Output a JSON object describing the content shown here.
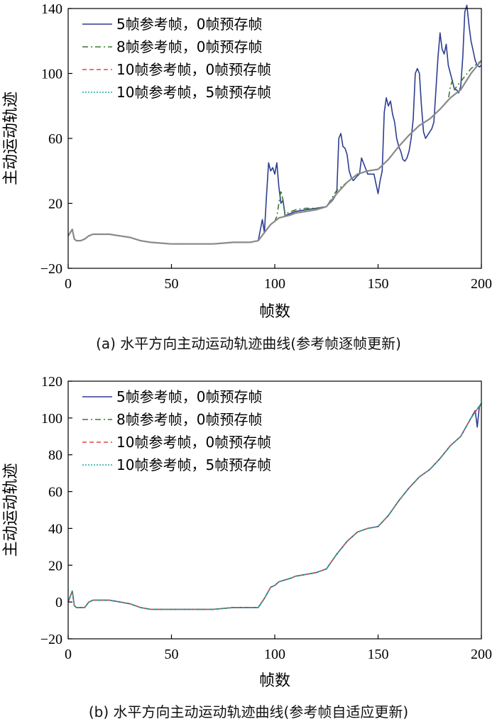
{
  "chart_data": [
    {
      "type": "line",
      "caption": "(a) 水平方向主动运动轨迹曲线(参考帧逐帧更新)",
      "xlabel": "帧数",
      "ylabel": "主动运动轨迹",
      "xlim": [
        0,
        200
      ],
      "ylim": [
        -20,
        140
      ],
      "xticks": [
        0,
        50,
        100,
        150,
        200
      ],
      "yticks": [
        -20,
        20,
        60,
        100,
        140
      ],
      "grid": false,
      "legend_position": "top-left",
      "series": [
        {
          "name": "5帧参考帧，0帧预存帧",
          "color": "#2e3d8f",
          "dash": "solid",
          "x": [
            0,
            2,
            3,
            4,
            6,
            8,
            10,
            12,
            15,
            20,
            25,
            30,
            35,
            40,
            50,
            60,
            70,
            80,
            88,
            92,
            94,
            95,
            96,
            97,
            98,
            99,
            100,
            101,
            102,
            103,
            104,
            105,
            106,
            108,
            110,
            115,
            120,
            125,
            128,
            130,
            131,
            132,
            133,
            134,
            135,
            136,
            137,
            138,
            140,
            141,
            142,
            145,
            148,
            150,
            151,
            152,
            153,
            154,
            155,
            156,
            157,
            158,
            159,
            160,
            161,
            162,
            163,
            164,
            165,
            166,
            167,
            168,
            169,
            170,
            171,
            172,
            173,
            174,
            175,
            176,
            177,
            178,
            179,
            180,
            181,
            182,
            183,
            184,
            185,
            186,
            187,
            188,
            189,
            190,
            191,
            192,
            193,
            194,
            195,
            196,
            197,
            198,
            199,
            200
          ],
          "y": [
            0,
            4,
            -2,
            -3,
            -3,
            -2,
            0,
            1,
            1,
            1,
            0,
            -1,
            -3,
            -4,
            -5,
            -5,
            -5,
            -4,
            -4,
            -3,
            10,
            2,
            25,
            45,
            40,
            42,
            38,
            45,
            30,
            20,
            22,
            12,
            13,
            14,
            15,
            16,
            17,
            18,
            22,
            26,
            60,
            63,
            55,
            54,
            50,
            40,
            36,
            34,
            37,
            38,
            48,
            38,
            38,
            26,
            34,
            40,
            76,
            85,
            80,
            83,
            75,
            70,
            60,
            55,
            52,
            47,
            46,
            48,
            52,
            60,
            72,
            100,
            103,
            100,
            80,
            64,
            60,
            62,
            64,
            66,
            70,
            90,
            110,
            125,
            115,
            112,
            118,
            105,
            100,
            95,
            90,
            90,
            88,
            92,
            110,
            138,
            142,
            130,
            120,
            114,
            108,
            105,
            104,
            105
          ]
        },
        {
          "name": "8帧参考帧，0帧预存帧",
          "color": "#3a7a34",
          "dash": "8 4 2 4",
          "x": [
            0,
            2,
            3,
            4,
            6,
            8,
            10,
            12,
            15,
            20,
            25,
            30,
            35,
            40,
            50,
            60,
            70,
            80,
            88,
            92,
            95,
            98,
            100,
            101,
            102,
            103,
            104,
            105,
            106,
            108,
            110,
            115,
            120,
            125,
            130,
            135,
            140,
            145,
            150,
            155,
            160,
            165,
            170,
            175,
            180,
            183,
            184,
            185,
            186,
            187,
            188,
            190,
            195,
            200
          ],
          "y": [
            0,
            4,
            -2,
            -3,
            -3,
            -2,
            0,
            1,
            1,
            1,
            0,
            -1,
            -3,
            -4,
            -5,
            -5,
            -5,
            -4,
            -4,
            -3,
            2,
            7,
            9,
            12,
            20,
            28,
            22,
            13,
            14,
            15,
            16,
            17,
            17,
            18,
            28,
            33,
            38,
            40,
            41,
            47,
            55,
            62,
            68,
            72,
            78,
            82,
            84,
            92,
            96,
            90,
            92,
            95,
            103,
            108
          ]
        },
        {
          "name": "10帧参考帧，0帧预存帧",
          "color": "#e0474c",
          "dash": "6 4",
          "x": [
            0,
            2,
            3,
            4,
            6,
            8,
            10,
            12,
            15,
            20,
            25,
            30,
            35,
            40,
            50,
            60,
            70,
            80,
            88,
            92,
            95,
            98,
            100,
            102,
            105,
            108,
            110,
            115,
            120,
            125,
            130,
            135,
            140,
            145,
            150,
            155,
            160,
            165,
            170,
            175,
            180,
            185,
            190,
            195,
            200
          ],
          "y": [
            0,
            4,
            -2,
            -3,
            -3,
            -2,
            0,
            1,
            1,
            1,
            0,
            -1,
            -3,
            -4,
            -5,
            -5,
            -5,
            -4,
            -4,
            -3,
            2,
            7,
            9,
            11,
            12,
            13,
            14,
            15,
            16,
            18,
            26,
            33,
            38,
            40,
            41,
            47,
            55,
            62,
            68,
            72,
            78,
            85,
            90,
            100,
            108
          ]
        },
        {
          "name": "10帧参考帧，5帧预存帧",
          "color": "#1aa6a6",
          "dash": "2 2",
          "x": [
            0,
            2,
            3,
            4,
            6,
            8,
            10,
            12,
            15,
            20,
            25,
            30,
            35,
            40,
            50,
            60,
            70,
            80,
            88,
            92,
            95,
            98,
            100,
            102,
            105,
            108,
            110,
            115,
            120,
            125,
            130,
            135,
            140,
            145,
            150,
            155,
            160,
            165,
            170,
            175,
            180,
            185,
            190,
            195,
            200
          ],
          "y": [
            0,
            4,
            -2,
            -3,
            -3,
            -2,
            0,
            1,
            1,
            1,
            0,
            -1,
            -3,
            -4,
            -5,
            -5,
            -5,
            -4,
            -4,
            -3,
            2,
            7,
            9,
            11,
            12,
            13,
            14,
            15,
            16,
            18,
            26,
            33,
            38,
            40,
            41,
            47,
            55,
            62,
            68,
            72,
            78,
            85,
            90,
            100,
            108
          ]
        },
        {
          "name": "",
          "color": "#8a8a8a",
          "dash": "solid",
          "x": [
            0,
            2,
            3,
            4,
            6,
            8,
            10,
            12,
            15,
            20,
            25,
            30,
            35,
            40,
            50,
            60,
            70,
            80,
            88,
            92,
            95,
            98,
            100,
            102,
            105,
            108,
            110,
            115,
            120,
            125,
            130,
            135,
            140,
            145,
            150,
            155,
            160,
            165,
            170,
            175,
            180,
            185,
            190,
            195,
            200
          ],
          "y": [
            0,
            4,
            -2,
            -3,
            -3,
            -2,
            0,
            1,
            1,
            1,
            0,
            -1,
            -3,
            -4,
            -5,
            -5,
            -5,
            -4,
            -4,
            -3,
            2,
            7,
            9,
            11,
            12,
            13,
            14,
            15,
            16,
            18,
            26,
            33,
            38,
            40,
            41,
            47,
            55,
            62,
            68,
            72,
            78,
            85,
            90,
            100,
            108
          ]
        }
      ]
    },
    {
      "type": "line",
      "caption": "(b) 水平方向主动运动轨迹曲线(参考帧自适应更新)",
      "xlabel": "帧数",
      "ylabel": "主动运动轨迹",
      "xlim": [
        0,
        200
      ],
      "ylim": [
        -20,
        120
      ],
      "xticks": [
        0,
        50,
        100,
        150,
        200
      ],
      "yticks": [
        -20,
        0,
        20,
        40,
        60,
        80,
        100,
        120
      ],
      "grid": false,
      "legend_position": "top-left",
      "series": [
        {
          "name": "5帧参考帧，0帧预存帧",
          "color": "#2e3d8f",
          "dash": "solid",
          "x": [
            0,
            2,
            3,
            4,
            6,
            8,
            10,
            12,
            15,
            20,
            25,
            30,
            35,
            40,
            50,
            60,
            70,
            80,
            88,
            92,
            95,
            98,
            100,
            102,
            105,
            108,
            110,
            115,
            120,
            125,
            130,
            135,
            140,
            145,
            150,
            155,
            160,
            165,
            170,
            175,
            180,
            185,
            190,
            195,
            197,
            198,
            199,
            200
          ],
          "y": [
            0,
            6,
            -2,
            -3,
            -3,
            -3,
            0,
            1,
            1,
            1,
            0,
            -1,
            -3,
            -4,
            -4,
            -4,
            -4,
            -3,
            -3,
            -3,
            2,
            8,
            9,
            11,
            12,
            13,
            14,
            15,
            16,
            18,
            26,
            33,
            38,
            40,
            41,
            47,
            55,
            62,
            68,
            72,
            78,
            85,
            90,
            100,
            104,
            95,
            106,
            108
          ]
        },
        {
          "name": "8帧参考帧，0帧预存帧",
          "color": "#3a7a34",
          "dash": "8 4 2 4",
          "x": [
            0,
            2,
            3,
            4,
            6,
            8,
            10,
            12,
            15,
            20,
            25,
            30,
            35,
            40,
            50,
            60,
            70,
            80,
            88,
            92,
            95,
            98,
            100,
            102,
            105,
            108,
            110,
            115,
            120,
            125,
            130,
            135,
            140,
            145,
            150,
            155,
            160,
            165,
            170,
            175,
            180,
            185,
            190,
            195,
            200
          ],
          "y": [
            0,
            6,
            -2,
            -3,
            -3,
            -3,
            0,
            1,
            1,
            1,
            0,
            -1,
            -3,
            -4,
            -4,
            -4,
            -4,
            -3,
            -3,
            -3,
            2,
            8,
            9,
            11,
            12,
            13,
            14,
            15,
            16,
            18,
            26,
            33,
            38,
            40,
            41,
            47,
            55,
            62,
            68,
            72,
            78,
            85,
            90,
            100,
            108
          ]
        },
        {
          "name": "10帧参考帧，0帧预存帧",
          "color": "#e0474c",
          "dash": "6 4",
          "x": [
            0,
            2,
            3,
            4,
            6,
            8,
            10,
            12,
            15,
            20,
            25,
            30,
            35,
            40,
            50,
            60,
            70,
            80,
            88,
            92,
            95,
            98,
            100,
            102,
            105,
            108,
            110,
            115,
            120,
            125,
            130,
            135,
            140,
            145,
            150,
            155,
            160,
            165,
            170,
            175,
            180,
            185,
            190,
            195,
            200
          ],
          "y": [
            0,
            6,
            -2,
            -3,
            -3,
            -3,
            0,
            1,
            1,
            1,
            0,
            -1,
            -3,
            -4,
            -4,
            -4,
            -4,
            -3,
            -3,
            -3,
            2,
            8,
            9,
            11,
            12,
            13,
            14,
            15,
            16,
            18,
            26,
            33,
            38,
            40,
            41,
            47,
            55,
            62,
            68,
            72,
            78,
            85,
            90,
            100,
            108
          ]
        },
        {
          "name": "10帧参考帧，5帧预存帧",
          "color": "#1aa6a6",
          "dash": "2 2",
          "x": [
            0,
            2,
            3,
            4,
            6,
            8,
            10,
            12,
            15,
            20,
            25,
            30,
            35,
            40,
            50,
            60,
            70,
            80,
            88,
            92,
            95,
            98,
            100,
            102,
            105,
            108,
            110,
            115,
            120,
            125,
            130,
            135,
            140,
            145,
            150,
            155,
            160,
            165,
            170,
            175,
            180,
            185,
            190,
            195,
            200
          ],
          "y": [
            0,
            6,
            -2,
            -3,
            -3,
            -3,
            0,
            1,
            1,
            1,
            0,
            -1,
            -3,
            -4,
            -4,
            -4,
            -4,
            -3,
            -3,
            -3,
            2,
            8,
            9,
            11,
            12,
            13,
            14,
            15,
            16,
            18,
            26,
            33,
            38,
            40,
            41,
            47,
            55,
            62,
            68,
            72,
            78,
            85,
            90,
            100,
            108
          ]
        }
      ]
    }
  ]
}
